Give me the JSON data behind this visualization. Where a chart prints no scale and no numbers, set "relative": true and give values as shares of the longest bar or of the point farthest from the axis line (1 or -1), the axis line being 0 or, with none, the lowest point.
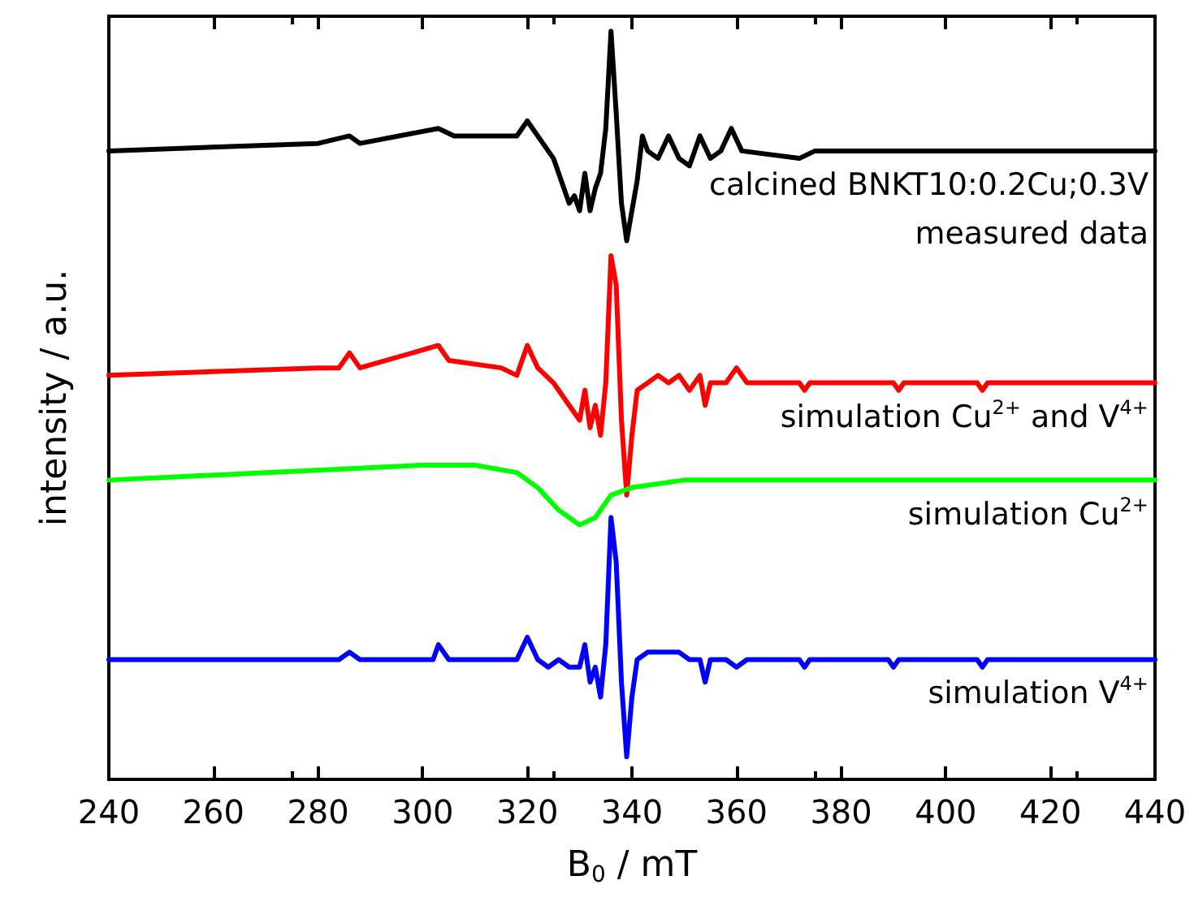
{
  "chart_data": {
    "type": "line",
    "relative": true,
    "xlabel": "B$_{0}$ / mT",
    "ylabel": "intensity / a.u.",
    "xlim": [
      240,
      440
    ],
    "xticks": [
      240,
      260,
      280,
      300,
      320,
      340,
      360,
      380,
      400,
      420,
      440
    ],
    "grid": false,
    "legend": false,
    "marker": "none",
    "line_style": "solid",
    "series": [
      {
        "name": "calcined BNKT10:0.2Cu;0.3V measured data",
        "color": "#000000",
        "x": [
          240,
          280,
          286,
          288,
          303,
          306,
          318,
          320,
          322,
          325,
          328,
          329,
          330,
          331,
          332,
          333,
          334,
          335,
          336,
          337,
          338,
          339,
          340,
          341,
          342,
          343,
          345,
          347,
          349,
          351,
          353,
          355,
          357,
          359,
          361,
          372,
          375,
          440
        ],
        "values": [
          0.84,
          0.85,
          0.86,
          0.85,
          0.87,
          0.86,
          0.86,
          0.88,
          0.86,
          0.83,
          0.77,
          0.78,
          0.76,
          0.81,
          0.76,
          0.79,
          0.81,
          0.87,
          1,
          0.89,
          0.77,
          0.72,
          0.76,
          0.8,
          0.86,
          0.84,
          0.83,
          0.86,
          0.83,
          0.82,
          0.86,
          0.83,
          0.84,
          0.87,
          0.84,
          0.83,
          0.84,
          0.84
        ]
      },
      {
        "name": "simulation Cu$^{2+}$ and V$^{4+}$",
        "color": "#ff0000",
        "x": [
          240,
          280,
          284,
          286,
          288,
          303,
          305,
          315,
          318,
          320,
          322,
          325,
          328,
          330,
          331,
          332,
          333,
          334,
          335,
          336,
          337,
          338,
          339,
          340,
          341,
          343,
          345,
          347,
          349,
          351,
          353,
          354,
          355,
          358,
          360,
          362,
          372,
          373,
          374,
          390,
          391,
          392,
          406,
          407,
          408,
          440
        ],
        "values": [
          0.54,
          0.55,
          0.55,
          0.57,
          0.55,
          0.58,
          0.56,
          0.55,
          0.54,
          0.58,
          0.55,
          0.53,
          0.5,
          0.48,
          0.52,
          0.47,
          0.5,
          0.46,
          0.53,
          0.7,
          0.66,
          0.48,
          0.38,
          0.46,
          0.52,
          0.53,
          0.54,
          0.53,
          0.54,
          0.52,
          0.54,
          0.5,
          0.53,
          0.53,
          0.55,
          0.53,
          0.53,
          0.52,
          0.53,
          0.53,
          0.52,
          0.53,
          0.53,
          0.52,
          0.53,
          0.53
        ]
      },
      {
        "name": "simulation Cu$^{2+}$",
        "color": "#00ff00",
        "x": [
          240,
          270,
          300,
          310,
          318,
          322,
          326,
          330,
          333,
          336,
          340,
          350,
          370,
          440
        ],
        "values": [
          0.4,
          0.41,
          0.42,
          0.42,
          0.41,
          0.39,
          0.36,
          0.34,
          0.35,
          0.38,
          0.39,
          0.4,
          0.4,
          0.4
        ]
      },
      {
        "name": "simulation V$^{4+}$",
        "color": "#0000ff",
        "x": [
          240,
          284,
          286,
          288,
          302,
          303,
          305,
          318,
          320,
          322,
          324,
          326,
          328,
          330,
          331,
          332,
          333,
          334,
          335,
          336,
          337,
          338,
          339,
          340,
          341,
          343,
          345,
          347,
          349,
          351,
          353,
          354,
          355,
          358,
          360,
          362,
          372,
          373,
          374,
          389,
          390,
          391,
          406,
          407,
          408,
          440
        ],
        "values": [
          0.16,
          0.16,
          0.17,
          0.16,
          0.16,
          0.18,
          0.16,
          0.16,
          0.19,
          0.16,
          0.15,
          0.16,
          0.15,
          0.15,
          0.18,
          0.13,
          0.15,
          0.11,
          0.18,
          0.35,
          0.29,
          0.13,
          0.03,
          0.11,
          0.16,
          0.17,
          0.17,
          0.17,
          0.17,
          0.16,
          0.16,
          0.13,
          0.16,
          0.16,
          0.15,
          0.16,
          0.16,
          0.15,
          0.16,
          0.16,
          0.15,
          0.16,
          0.16,
          0.15,
          0.16,
          0.16
        ]
      }
    ]
  }
}
